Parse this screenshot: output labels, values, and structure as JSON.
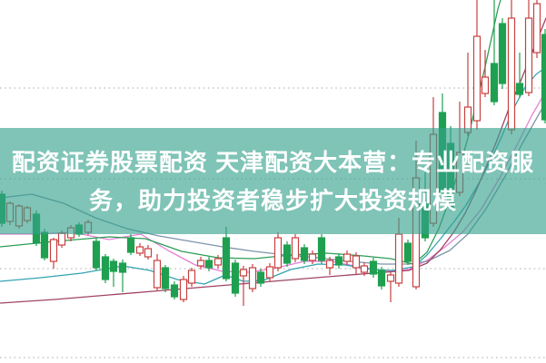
{
  "banner": {
    "line1": "配资证券股票配资 天津配资大本营：专业配资服",
    "line2": "务，助力投资者稳步扩大投资规模",
    "bg_color": "rgba(52,162,141,0.63)",
    "text_color": "#ffffff"
  },
  "chart_data": {
    "type": "candlestick",
    "title": "",
    "xlabel": "",
    "ylabel": "",
    "note": "No axis labels visible; prices normalized 0-100 mapped to chart height (0=bottom, 100=top).",
    "ylim": [
      0,
      100
    ],
    "background": "#ffffff",
    "grid": {
      "on": true,
      "color": "#bdbdbd",
      "style": "dotted",
      "y_values": [
        75.75,
        50.75,
        26,
        1.5
      ]
    },
    "colors": {
      "up": "#c84040",
      "up_fill": "#ffffff",
      "down": "#1fa050"
    },
    "candle_columns": [
      "x_px",
      "open",
      "close",
      "high",
      "low"
    ],
    "candles": [
      [
        2,
        46.5,
        38.5,
        47.5,
        37.5
      ],
      [
        11,
        39,
        44,
        44.5,
        38
      ],
      [
        21,
        37.75,
        43.25,
        43.75,
        37
      ],
      [
        30,
        39.25,
        42.75,
        43.25,
        38.5
      ],
      [
        40,
        41,
        33,
        42,
        32.25
      ],
      [
        49,
        36,
        29,
        37,
        28.25
      ],
      [
        59,
        28,
        34,
        34.5,
        26
      ],
      [
        68,
        32.5,
        35.75,
        36.5,
        31.75
      ],
      [
        78,
        34.5,
        37.25,
        38,
        33.5
      ],
      [
        87,
        38,
        35.5,
        38.75,
        34.75
      ],
      [
        97,
        36,
        38.75,
        39.5,
        35.25
      ],
      [
        106,
        33.5,
        26.25,
        34.5,
        25.5
      ],
      [
        116,
        29.25,
        23,
        30,
        22
      ],
      [
        125,
        28,
        25.25,
        28.75,
        21
      ],
      [
        135,
        27.5,
        25,
        28.5,
        19.5
      ],
      [
        144,
        34.5,
        30.5,
        35.5,
        29.75
      ],
      [
        154,
        30.25,
        32,
        33,
        29.5
      ],
      [
        163,
        29.25,
        31.5,
        32.5,
        28.5
      ],
      [
        173,
        20.75,
        28.25,
        30,
        19.75
      ],
      [
        182,
        26.25,
        20.5,
        27,
        19.5
      ],
      [
        192,
        21.5,
        18.25,
        22.5,
        17.5
      ],
      [
        202,
        17.5,
        23,
        24,
        16.75
      ],
      [
        211,
        22,
        25.5,
        26.25,
        21
      ],
      [
        221,
        26.75,
        28.25,
        29.25,
        25.75
      ],
      [
        230,
        28.25,
        26.25,
        29.25,
        25.25
      ],
      [
        240,
        27,
        28.75,
        29.75,
        26
      ],
      [
        249,
        34.5,
        23.25,
        37.5,
        22.5
      ],
      [
        259,
        27.5,
        19.25,
        28.5,
        18.25
      ],
      [
        268,
        24,
        25.75,
        26.75,
        15.75
      ],
      [
        278,
        20.5,
        26.25,
        27.25,
        19.5
      ],
      [
        287,
        25,
        22,
        26,
        21
      ],
      [
        297,
        23.5,
        26.5,
        27.5,
        22.5
      ],
      [
        306,
        26.25,
        34.5,
        36,
        25.25
      ],
      [
        316,
        32.5,
        27.5,
        33.5,
        26.5
      ],
      [
        325,
        28.75,
        34.5,
        35.5,
        27.75
      ],
      [
        335,
        31.75,
        28.25,
        32.75,
        27.25
      ],
      [
        344,
        28.25,
        30,
        31,
        27.25
      ],
      [
        354,
        34.5,
        28.25,
        35.5,
        27.25
      ],
      [
        363,
        26.25,
        28.25,
        29.25,
        24.25
      ],
      [
        373,
        29.25,
        27,
        30.25,
        26
      ],
      [
        382,
        28,
        30,
        31,
        27
      ],
      [
        392,
        26.25,
        29.5,
        30.5,
        24.25
      ],
      [
        401,
        25,
        26.75,
        27.75,
        24
      ],
      [
        411,
        28,
        24.5,
        29,
        23.5
      ],
      [
        420,
        25.5,
        21.25,
        26.5,
        20.25
      ],
      [
        430,
        22.5,
        24.25,
        25.25,
        16.75
      ],
      [
        439,
        22,
        35.5,
        40,
        21
      ],
      [
        449,
        33,
        28,
        34,
        27
      ],
      [
        458,
        21,
        51,
        61.25,
        20.25
      ],
      [
        468,
        43.75,
        34.5,
        52.5,
        33.5
      ],
      [
        477,
        38.5,
        63,
        73.25,
        37.5
      ],
      [
        487,
        69,
        46.5,
        74.25,
        45.5
      ],
      [
        496,
        60.5,
        43,
        65.25,
        42
      ],
      [
        506,
        47,
        58,
        72,
        46
      ],
      [
        515,
        63.5,
        70.5,
        85.5,
        62.5
      ],
      [
        525,
        66.75,
        90,
        100,
        64.25
      ],
      [
        534,
        74.25,
        78.75,
        86.25,
        73.25
      ],
      [
        544,
        82.5,
        72,
        100,
        71
      ],
      [
        553,
        93.5,
        77,
        95,
        75.5
      ],
      [
        563,
        64.25,
        95,
        100,
        63
      ],
      [
        572,
        77,
        74,
        85.5,
        73
      ],
      [
        582,
        74.5,
        95,
        100,
        73.5
      ],
      [
        591,
        85.5,
        99,
        100,
        84
      ],
      [
        600,
        90.5,
        67,
        92,
        66
      ]
    ],
    "ma_lines": [
      {
        "name": "ma-pink",
        "color": "#e87fd6",
        "points": [
          [
            0,
            35.5
          ],
          [
            40,
            35.5
          ],
          [
            80,
            36
          ],
          [
            120,
            34
          ],
          [
            155,
            35.5
          ],
          [
            185,
            31
          ],
          [
            215,
            27
          ],
          [
            245,
            25.25
          ],
          [
            275,
            25
          ],
          [
            305,
            26.25
          ],
          [
            335,
            28
          ],
          [
            365,
            28
          ],
          [
            395,
            26.5
          ],
          [
            425,
            25.25
          ],
          [
            450,
            25.75
          ],
          [
            470,
            28.25
          ],
          [
            490,
            32
          ],
          [
            510,
            36.25
          ],
          [
            530,
            42.5
          ],
          [
            550,
            51
          ],
          [
            570,
            60.5
          ],
          [
            585,
            68
          ],
          [
            601,
            75
          ]
        ]
      },
      {
        "name": "ma-slate",
        "color": "#7e94a9",
        "points": [
          [
            0,
            45.5
          ],
          [
            35,
            46.5
          ],
          [
            70,
            44
          ],
          [
            105,
            40
          ],
          [
            140,
            37
          ],
          [
            175,
            35
          ],
          [
            210,
            33.5
          ],
          [
            245,
            32
          ],
          [
            280,
            30.75
          ],
          [
            315,
            29.75
          ],
          [
            350,
            29
          ],
          [
            385,
            28
          ],
          [
            420,
            27.25
          ],
          [
            450,
            27.25
          ],
          [
            470,
            28
          ],
          [
            495,
            31
          ],
          [
            515,
            35.5
          ],
          [
            535,
            42.5
          ],
          [
            555,
            51
          ],
          [
            575,
            60.5
          ],
          [
            601,
            72
          ]
        ]
      },
      {
        "name": "ma-teal",
        "color": "#35a3b2",
        "points": [
          [
            0,
            22.5
          ],
          [
            45,
            23.5
          ],
          [
            90,
            24.75
          ],
          [
            135,
            26.75
          ],
          [
            165,
            25.5
          ],
          [
            195,
            23
          ],
          [
            225,
            21.75
          ],
          [
            248,
            24.25
          ],
          [
            268,
            22.5
          ],
          [
            290,
            22.75
          ],
          [
            320,
            25.75
          ],
          [
            350,
            27.25
          ],
          [
            380,
            27
          ],
          [
            410,
            25.75
          ],
          [
            432,
            25.5
          ],
          [
            455,
            26.5
          ],
          [
            470,
            29.75
          ],
          [
            485,
            34.25
          ],
          [
            500,
            39
          ],
          [
            513,
            43.5
          ],
          [
            526,
            49
          ],
          [
            539,
            55.25
          ],
          [
            552,
            62.25
          ],
          [
            565,
            70
          ],
          [
            578,
            76
          ],
          [
            590,
            79.5
          ],
          [
            601,
            81.5
          ]
        ]
      },
      {
        "name": "ma-green",
        "color": "#2e9e57",
        "points": [
          [
            0,
            32
          ],
          [
            60,
            33.5
          ],
          [
            120,
            34.75
          ],
          [
            160,
            34.25
          ],
          [
            200,
            30.75
          ],
          [
            240,
            29
          ],
          [
            280,
            28.75
          ],
          [
            320,
            29.75
          ],
          [
            360,
            30.25
          ],
          [
            400,
            29.5
          ],
          [
            430,
            28.75
          ],
          [
            455,
            27.25
          ],
          [
            470,
            30.5
          ],
          [
            483,
            37
          ],
          [
            494,
            44.5
          ],
          [
            505,
            53
          ],
          [
            515,
            62
          ],
          [
            524,
            71.25
          ],
          [
            533,
            80.5
          ],
          [
            541,
            89.5
          ],
          [
            548,
            97.5
          ],
          [
            551,
            100
          ]
        ]
      },
      {
        "name": "ma-maroon",
        "color": "#a04468",
        "points": [
          [
            0,
            16.5
          ],
          [
            60,
            17.5
          ],
          [
            120,
            18.75
          ],
          [
            180,
            20
          ],
          [
            240,
            21.25
          ],
          [
            300,
            22.5
          ],
          [
            360,
            23.75
          ],
          [
            410,
            24.75
          ],
          [
            450,
            25.5
          ],
          [
            470,
            27.5
          ],
          [
            485,
            31.25
          ],
          [
            500,
            36.25
          ],
          [
            512,
            41.25
          ],
          [
            524,
            47.5
          ],
          [
            536,
            54.5
          ],
          [
            548,
            62
          ],
          [
            560,
            70
          ],
          [
            572,
            77
          ],
          [
            584,
            84.5
          ],
          [
            593,
            90
          ],
          [
            601,
            95
          ]
        ]
      }
    ]
  }
}
